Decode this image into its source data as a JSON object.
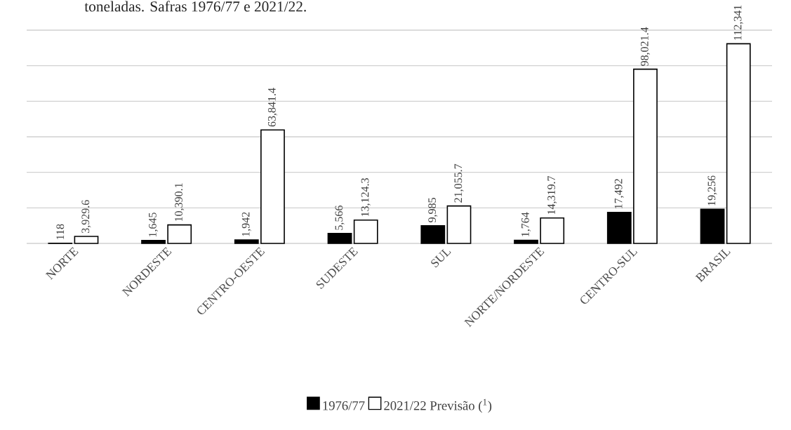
{
  "chart_data": {
    "type": "bar",
    "title": "toneladas. Safras 1976/77 e 2021/22.",
    "categories": [
      "NORTE",
      "NORDESTE",
      "CENTRO-OESTE",
      "SUDESTE",
      "SUL",
      "NORTE/NORDESTE",
      "CENTRO-SUL",
      "BRASIL"
    ],
    "series": [
      {
        "name": "1976/77",
        "color": "#000000",
        "values": [
          118,
          1645,
          1942,
          5566,
          9985,
          1764,
          17492,
          19256
        ],
        "value_labels": [
          "118",
          "1,645",
          "1,942",
          "5,566",
          "9,985",
          "1,764",
          "17,492",
          "19,256"
        ]
      },
      {
        "name": "2021/22 Previsão ($^{1}$)",
        "color": "#ffffff",
        "values": [
          3929.6,
          10390.1,
          63841.4,
          13124.3,
          21055.7,
          14319.7,
          98021.4,
          112341
        ],
        "value_labels": [
          "3,929.6",
          "10,390.1",
          "63,841.4",
          "13,124.3",
          "21,055.7",
          "14,319.7",
          "98,021.4",
          "112,341"
        ]
      }
    ],
    "ylim": [
      0,
      120000
    ],
    "yticks": [
      {
        "value": 0,
        "label": null
      },
      {
        "value": 20000,
        "label": null
      },
      {
        "value": 40000,
        "label": null
      },
      {
        "value": 60000,
        "label": null
      },
      {
        "value": 80000,
        "label": null
      },
      {
        "value": 100000,
        "label": null
      },
      {
        "value": 120000,
        "label": null
      }
    ],
    "tick_labels": "x",
    "grid": "y",
    "legend": "bottom"
  }
}
